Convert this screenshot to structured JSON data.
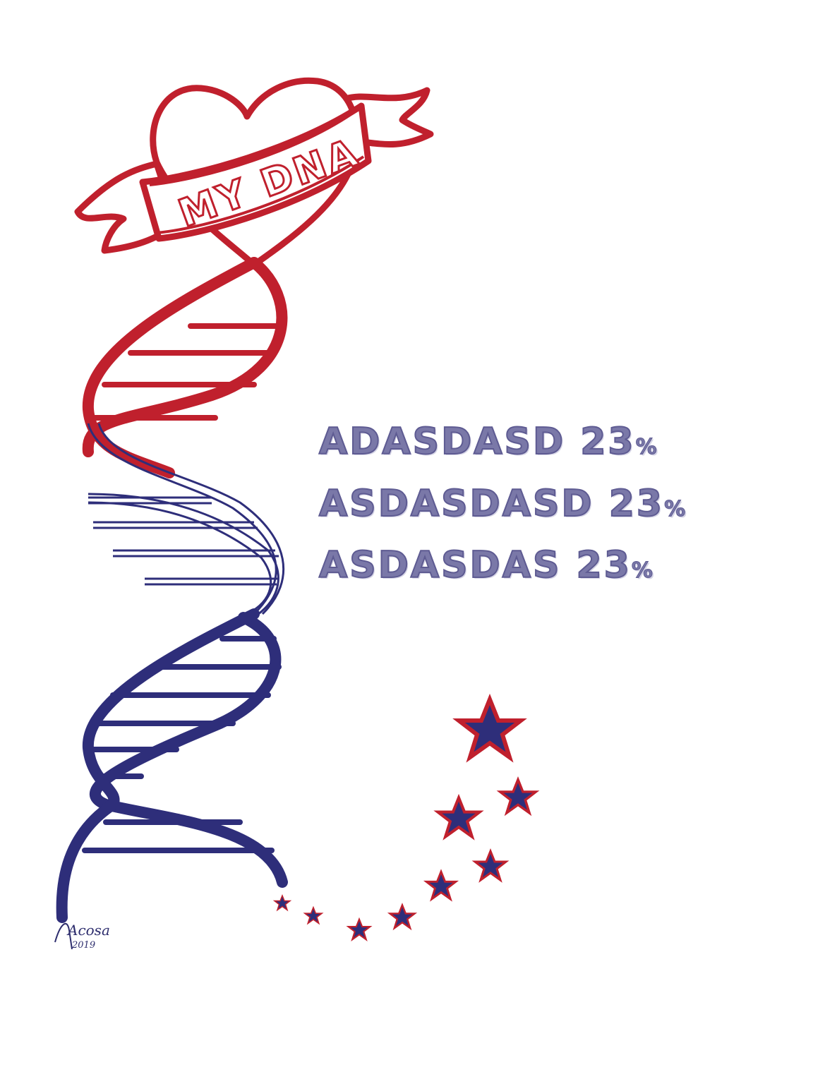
{
  "banner": {
    "text": "MY DNA"
  },
  "stats": [
    {
      "name": "ADASDASD",
      "value": "23",
      "unit": "%"
    },
    {
      "name": "ASDASDASD",
      "value": "23",
      "unit": "%"
    },
    {
      "name": "ASDASDAS",
      "value": "23",
      "unit": "%"
    }
  ],
  "signature": {
    "name": "Acosa",
    "year": "2019"
  },
  "colors": {
    "red": "#c0202d",
    "navy": "#2e2e7a",
    "text": "#7a78a8"
  }
}
